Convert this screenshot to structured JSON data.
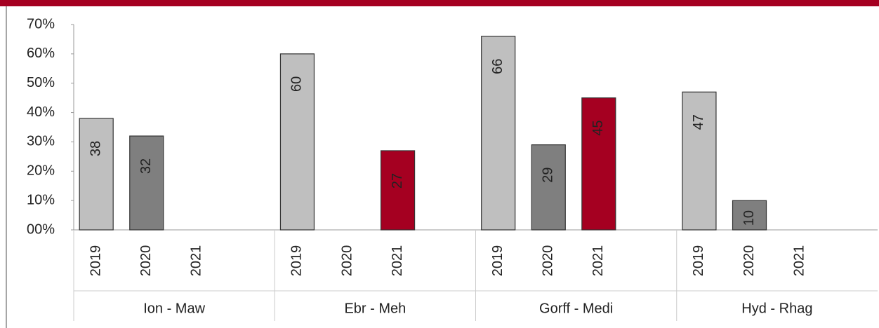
{
  "chart_data": {
    "type": "bar",
    "categories": [
      "Ion - Maw",
      "Ebr - Meh",
      "Gorff - Medi",
      "Hyd - Rhag"
    ],
    "series": [
      {
        "name": "2019",
        "color": "#bfbfbf",
        "label_color": "#222222",
        "values": [
          38,
          60,
          66,
          47
        ]
      },
      {
        "name": "2020",
        "color": "#7f7f7f",
        "label_color": "#ffffff",
        "values": [
          32,
          null,
          29,
          10
        ]
      },
      {
        "name": "2021",
        "color": "#a50021",
        "label_color": "#ffffff",
        "values": [
          null,
          27,
          45,
          null
        ]
      }
    ],
    "ylim": [
      0,
      70
    ],
    "yticks": [
      {
        "value": 0,
        "label": "00%"
      },
      {
        "value": 10,
        "label": "10%"
      },
      {
        "value": 20,
        "label": "20%"
      },
      {
        "value": 30,
        "label": "30%"
      },
      {
        "value": 40,
        "label": "40%"
      },
      {
        "value": 50,
        "label": "50%"
      },
      {
        "value": 60,
        "label": "60%"
      },
      {
        "value": 70,
        "label": "70%"
      }
    ]
  }
}
